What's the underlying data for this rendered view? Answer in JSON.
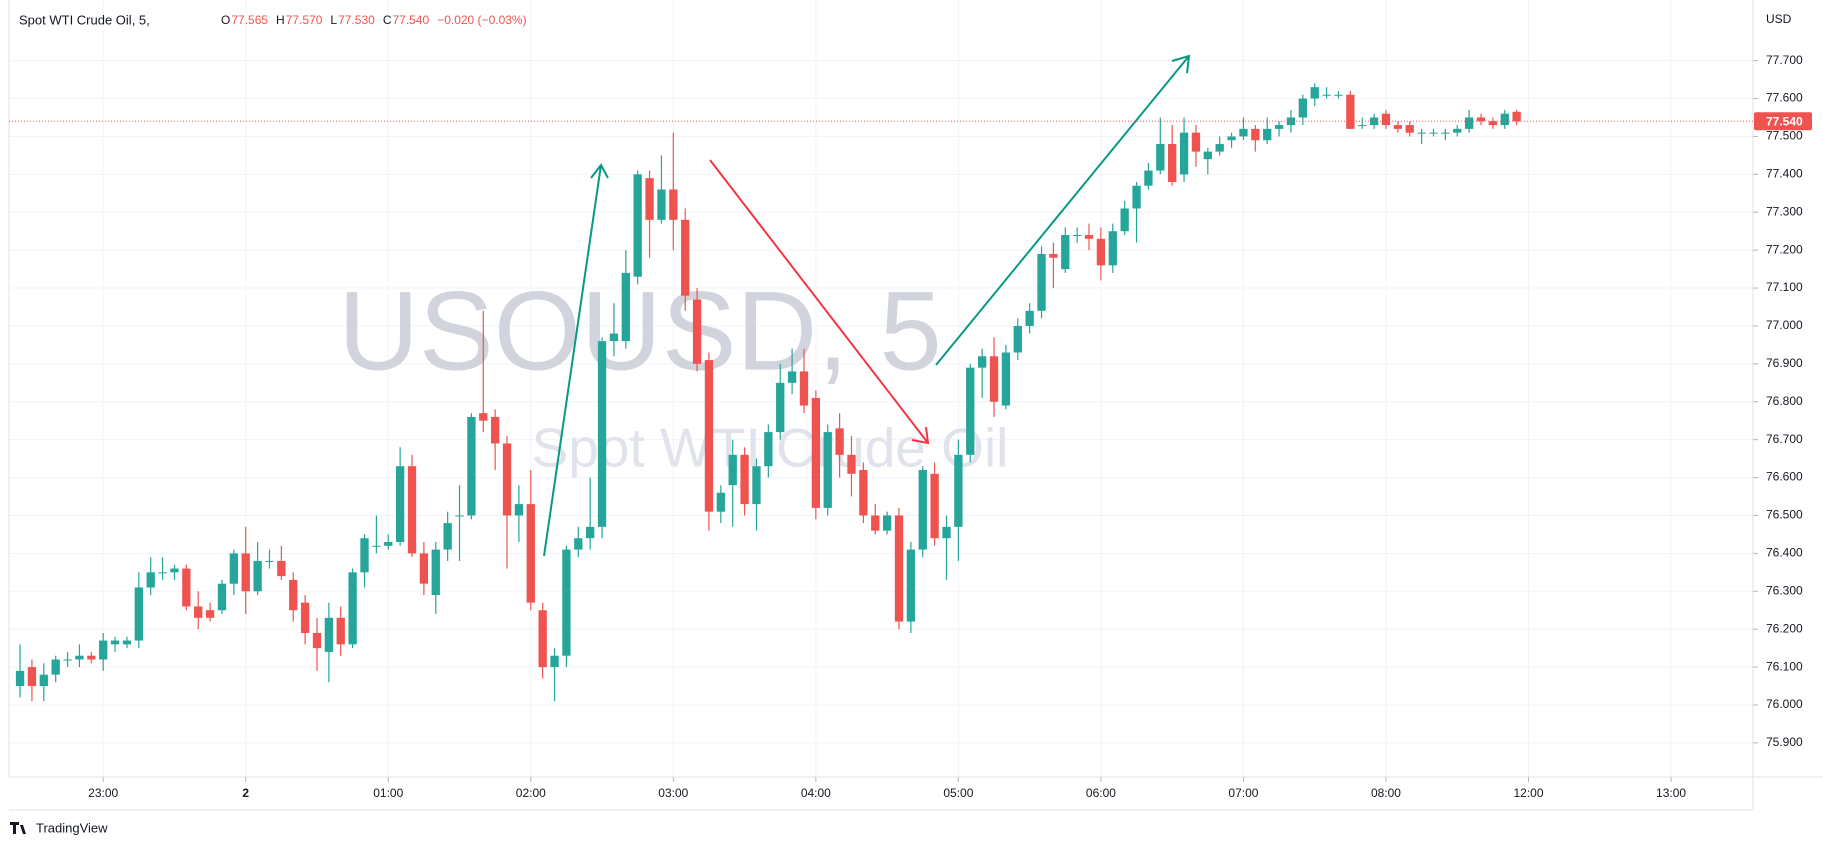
{
  "chart_data": {
    "type": "candlestick",
    "title": "Spot WTI Crude Oil, 5,",
    "ohlc_header": [
      {
        "key": "O",
        "value": "77.565"
      },
      {
        "key": "H",
        "value": "77.570"
      },
      {
        "key": "L",
        "value": "77.530"
      },
      {
        "key": "C",
        "value": "77.540"
      }
    ],
    "change": "−0.020 (−0.03%)",
    "watermark": "USOUSD, 5",
    "watermark_subtitle": "Spot WTI Crude Oil",
    "currency": "USD",
    "brand": "TradingView",
    "up_color": "#26a69a",
    "down_color": "#ef5350",
    "last_price": {
      "value": 77.54,
      "label": "77.540"
    },
    "xlim": [
      -0.93,
      145.9
    ],
    "ylim": [
      75.81,
      77.86
    ],
    "xticks": [
      {
        "value": 7,
        "label": "23:00"
      },
      {
        "value": 19,
        "label": "2"
      },
      {
        "value": 31,
        "label": "01:00"
      },
      {
        "value": 43,
        "label": "02:00"
      },
      {
        "value": 55,
        "label": "03:00"
      },
      {
        "value": 67,
        "label": "04:00"
      },
      {
        "value": 79,
        "label": "05:00"
      },
      {
        "value": 91,
        "label": "06:00"
      },
      {
        "value": 103,
        "label": "07:00"
      },
      {
        "value": 115,
        "label": "08:00"
      },
      {
        "value": 127,
        "label": "12:00"
      },
      {
        "value": 139,
        "label": "13:00"
      }
    ],
    "yticks": [
      {
        "value": 75.9,
        "label": "75.900"
      },
      {
        "value": 76,
        "label": "76.000"
      },
      {
        "value": 76.1,
        "label": "76.100"
      },
      {
        "value": 76.2,
        "label": "76.200"
      },
      {
        "value": 76.3,
        "label": "76.300"
      },
      {
        "value": 76.4,
        "label": "76.400"
      },
      {
        "value": 76.5,
        "label": "76.500"
      },
      {
        "value": 76.6,
        "label": "76.600"
      },
      {
        "value": 76.7,
        "label": "76.700"
      },
      {
        "value": 76.8,
        "label": "76.800"
      },
      {
        "value": 76.9,
        "label": "76.900"
      },
      {
        "value": 77,
        "label": "77.000"
      },
      {
        "value": 77.1,
        "label": "77.100"
      },
      {
        "value": 77.2,
        "label": "77.200"
      },
      {
        "value": 77.3,
        "label": "77.300"
      },
      {
        "value": 77.4,
        "label": "77.400"
      },
      {
        "value": 77.5,
        "label": "77.500"
      },
      {
        "value": 77.6,
        "label": "77.600"
      },
      {
        "value": 77.7,
        "label": "77.700"
      }
    ],
    "candles": [
      [
        76.05,
        76.16,
        76.02,
        76.09
      ],
      [
        76.1,
        76.12,
        76.01,
        76.05
      ],
      [
        76.05,
        76.11,
        76.01,
        76.08
      ],
      [
        76.08,
        76.13,
        76.06,
        76.12
      ],
      [
        76.12,
        76.14,
        76.1,
        76.12
      ],
      [
        76.12,
        76.16,
        76.1,
        76.13
      ],
      [
        76.13,
        76.14,
        76.11,
        76.12
      ],
      [
        76.12,
        76.19,
        76.09,
        76.17
      ],
      [
        76.16,
        76.18,
        76.14,
        76.17
      ],
      [
        76.16,
        76.18,
        76.15,
        76.17
      ],
      [
        76.17,
        76.35,
        76.15,
        76.31
      ],
      [
        76.31,
        76.39,
        76.29,
        76.35
      ],
      [
        76.35,
        76.39,
        76.33,
        76.35
      ],
      [
        76.35,
        76.37,
        76.33,
        76.36
      ],
      [
        76.36,
        76.37,
        76.25,
        76.26
      ],
      [
        76.26,
        76.3,
        76.2,
        76.23
      ],
      [
        76.25,
        76.27,
        76.22,
        76.23
      ],
      [
        76.25,
        76.33,
        76.24,
        76.32
      ],
      [
        76.32,
        76.41,
        76.29,
        76.4
      ],
      [
        76.4,
        76.47,
        76.24,
        76.3
      ],
      [
        76.3,
        76.43,
        76.29,
        76.38
      ],
      [
        76.38,
        76.41,
        76.36,
        76.38
      ],
      [
        76.38,
        76.42,
        76.33,
        76.34
      ],
      [
        76.33,
        76.35,
        76.22,
        76.25
      ],
      [
        76.27,
        76.29,
        76.16,
        76.19
      ],
      [
        76.19,
        76.23,
        76.09,
        76.15
      ],
      [
        76.14,
        76.27,
        76.06,
        76.23
      ],
      [
        76.23,
        76.26,
        76.13,
        76.16
      ],
      [
        76.16,
        76.36,
        76.15,
        76.35
      ],
      [
        76.35,
        76.45,
        76.31,
        76.44
      ],
      [
        76.42,
        76.5,
        76.4,
        76.42
      ],
      [
        76.42,
        76.45,
        76.41,
        76.43
      ],
      [
        76.43,
        76.68,
        76.42,
        76.63
      ],
      [
        76.63,
        76.66,
        76.39,
        76.4
      ],
      [
        76.4,
        76.43,
        76.29,
        76.32
      ],
      [
        76.29,
        76.43,
        76.24,
        76.41
      ],
      [
        76.41,
        76.51,
        76.38,
        76.48
      ],
      [
        76.5,
        76.58,
        76.38,
        76.5
      ],
      [
        76.5,
        76.77,
        76.49,
        76.76
      ],
      [
        76.77,
        77.04,
        76.72,
        76.75
      ],
      [
        76.76,
        76.78,
        76.62,
        76.69
      ],
      [
        76.69,
        76.71,
        76.36,
        76.5
      ],
      [
        76.5,
        76.58,
        76.43,
        76.53
      ],
      [
        76.53,
        76.62,
        76.25,
        76.27
      ],
      [
        76.25,
        76.27,
        76.07,
        76.1
      ],
      [
        76.1,
        76.15,
        76.01,
        76.13
      ],
      [
        76.13,
        76.42,
        76.1,
        76.41
      ],
      [
        76.41,
        76.47,
        76.39,
        76.44
      ],
      [
        76.44,
        76.6,
        76.41,
        76.47
      ],
      [
        76.47,
        76.97,
        76.44,
        76.96
      ],
      [
        76.96,
        77.06,
        76.92,
        76.98
      ],
      [
        76.96,
        77.2,
        76.94,
        77.14
      ],
      [
        77.13,
        77.41,
        77.11,
        77.4
      ],
      [
        77.39,
        77.41,
        77.18,
        77.28
      ],
      [
        77.28,
        77.45,
        77.27,
        77.36
      ],
      [
        77.36,
        77.51,
        77.2,
        77.28
      ],
      [
        77.28,
        77.31,
        77.04,
        77.08
      ],
      [
        77.07,
        77.1,
        76.88,
        76.9
      ],
      [
        76.91,
        76.93,
        76.46,
        76.51
      ],
      [
        76.51,
        76.58,
        76.48,
        76.56
      ],
      [
        76.58,
        76.7,
        76.47,
        76.66
      ],
      [
        76.66,
        76.68,
        76.5,
        76.53
      ],
      [
        76.53,
        76.65,
        76.46,
        76.63
      ],
      [
        76.63,
        76.74,
        76.6,
        76.72
      ],
      [
        76.72,
        76.9,
        76.7,
        76.85
      ],
      [
        76.85,
        76.94,
        76.82,
        76.88
      ],
      [
        76.88,
        76.94,
        76.77,
        76.79
      ],
      [
        76.81,
        76.83,
        76.49,
        76.52
      ],
      [
        76.52,
        76.74,
        76.5,
        76.72
      ],
      [
        76.73,
        76.77,
        76.6,
        76.66
      ],
      [
        76.66,
        76.71,
        76.55,
        76.61
      ],
      [
        76.62,
        76.64,
        76.48,
        76.5
      ],
      [
        76.5,
        76.53,
        76.45,
        76.46
      ],
      [
        76.46,
        76.51,
        76.45,
        76.5
      ],
      [
        76.5,
        76.52,
        76.2,
        76.22
      ],
      [
        76.22,
        76.43,
        76.19,
        76.41
      ],
      [
        76.41,
        76.63,
        76.39,
        76.62
      ],
      [
        76.61,
        76.64,
        76.42,
        76.44
      ],
      [
        76.44,
        76.5,
        76.33,
        76.47
      ],
      [
        76.47,
        76.7,
        76.38,
        76.66
      ],
      [
        76.66,
        76.9,
        76.64,
        76.89
      ],
      [
        76.89,
        76.94,
        76.81,
        76.92
      ],
      [
        76.92,
        76.97,
        76.76,
        76.8
      ],
      [
        76.79,
        76.95,
        76.78,
        76.93
      ],
      [
        76.93,
        77.02,
        76.91,
        77
      ],
      [
        77,
        77.06,
        76.98,
        77.04
      ],
      [
        77.04,
        77.21,
        77.02,
        77.19
      ],
      [
        77.19,
        77.22,
        77.1,
        77.18
      ],
      [
        77.15,
        77.26,
        77.14,
        77.24
      ],
      [
        77.24,
        77.26,
        77.22,
        77.24
      ],
      [
        77.24,
        77.27,
        77.2,
        77.23
      ],
      [
        77.23,
        77.26,
        77.12,
        77.16
      ],
      [
        77.16,
        77.27,
        77.14,
        77.25
      ],
      [
        77.25,
        77.33,
        77.24,
        77.31
      ],
      [
        77.31,
        77.38,
        77.22,
        77.37
      ],
      [
        77.37,
        77.43,
        77.36,
        77.41
      ],
      [
        77.41,
        77.55,
        77.4,
        77.48
      ],
      [
        77.48,
        77.53,
        77.37,
        77.38
      ],
      [
        77.4,
        77.55,
        77.38,
        77.51
      ],
      [
        77.51,
        77.53,
        77.42,
        77.46
      ],
      [
        77.44,
        77.47,
        77.4,
        77.46
      ],
      [
        77.46,
        77.5,
        77.45,
        77.48
      ],
      [
        77.49,
        77.51,
        77.47,
        77.5
      ],
      [
        77.5,
        77.55,
        77.49,
        77.52
      ],
      [
        77.52,
        77.53,
        77.46,
        77.49
      ],
      [
        77.49,
        77.55,
        77.48,
        77.52
      ],
      [
        77.52,
        77.54,
        77.5,
        77.53
      ],
      [
        77.53,
        77.57,
        77.51,
        77.55
      ],
      [
        77.55,
        77.61,
        77.53,
        77.6
      ],
      [
        77.6,
        77.64,
        77.58,
        77.63
      ],
      [
        77.61,
        77.63,
        77.6,
        77.61
      ],
      [
        77.61,
        77.62,
        77.6,
        77.61
      ],
      [
        77.61,
        77.62,
        77.52,
        77.52
      ],
      [
        77.53,
        77.55,
        77.52,
        77.53
      ],
      [
        77.53,
        77.56,
        77.52,
        77.55
      ],
      [
        77.56,
        77.57,
        77.52,
        77.53
      ],
      [
        77.53,
        77.54,
        77.51,
        77.52
      ],
      [
        77.53,
        77.54,
        77.5,
        77.51
      ],
      [
        77.51,
        77.52,
        77.48,
        77.51
      ],
      [
        77.51,
        77.52,
        77.5,
        77.51
      ],
      [
        77.51,
        77.52,
        77.49,
        77.51
      ],
      [
        77.51,
        77.53,
        77.5,
        77.52
      ],
      [
        77.52,
        77.57,
        77.51,
        77.55
      ],
      [
        77.55,
        77.56,
        77.53,
        77.54
      ],
      [
        77.54,
        77.55,
        77.52,
        77.53
      ],
      [
        77.53,
        77.57,
        77.52,
        77.56
      ],
      [
        77.565,
        77.57,
        77.53,
        77.54
      ]
    ]
  }
}
